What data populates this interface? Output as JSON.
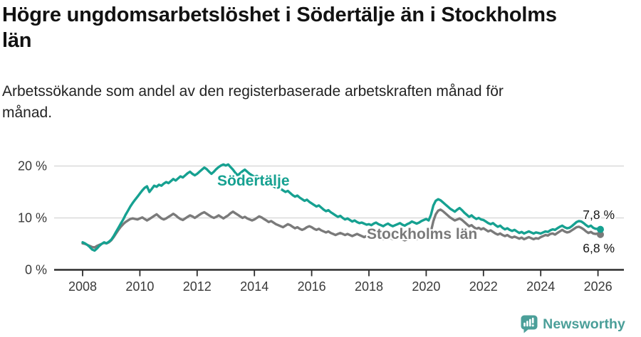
{
  "header": {
    "title_lines": [
      "Högre ungdomsarbetslöshet i Södertälje än i Stockholms",
      "län"
    ],
    "subtitle_lines": [
      "Arbetssökande som andel av den registerbaserade arbetskraften månad för",
      "månad."
    ]
  },
  "footer": {
    "brand_name": "Newsworthy",
    "brand_color": "#4b9f99"
  },
  "chart_data": {
    "type": "line",
    "title": "Högre ungdomsarbetslöshet i Södertälje än i Stockholms län",
    "subtitle": "Arbetssökande som andel av den registerbaserade arbetskraften månad för månad.",
    "unit": "%",
    "x_start_year": 2008,
    "x_step": "monthly",
    "x_end": "2026-02",
    "ylim": [
      0,
      21
    ],
    "grid": "horizontal",
    "y_ticks": [
      {
        "value": 0,
        "label": "0 %"
      },
      {
        "value": 10,
        "label": "10 %"
      },
      {
        "value": 20,
        "label": "20 %"
      }
    ],
    "x_ticks": [
      {
        "value": 2008,
        "label": "2008"
      },
      {
        "value": 2010,
        "label": "2010"
      },
      {
        "value": 2012,
        "label": "2012"
      },
      {
        "value": 2014,
        "label": "2014"
      },
      {
        "value": 2016,
        "label": "2016"
      },
      {
        "value": 2018,
        "label": "2018"
      },
      {
        "value": 2020,
        "label": "2020"
      },
      {
        "value": 2022,
        "label": "2022"
      },
      {
        "value": 2024,
        "label": "2024"
      },
      {
        "value": 2026,
        "label": "2026"
      }
    ],
    "end_labels": [
      {
        "series": "Södertälje",
        "value": 7.8,
        "label": "7,8 %"
      },
      {
        "series": "Stockholms län",
        "value": 6.8,
        "label": "6,8 %"
      }
    ],
    "series": [
      {
        "name": "Södertälje",
        "color": "#16a191",
        "values": [
          5.3,
          5.1,
          4.8,
          4.4,
          3.9,
          3.7,
          4.1,
          4.6,
          5.0,
          5.3,
          5.1,
          5.4,
          5.8,
          6.5,
          7.3,
          8.1,
          8.9,
          9.7,
          10.6,
          11.4,
          12.2,
          12.9,
          13.5,
          14.1,
          14.7,
          15.3,
          15.8,
          16.1,
          15.0,
          15.6,
          16.2,
          16.0,
          16.4,
          16.2,
          16.6,
          16.9,
          16.7,
          17.1,
          17.5,
          17.2,
          17.6,
          18.0,
          17.8,
          18.2,
          18.6,
          18.9,
          18.5,
          18.2,
          18.5,
          18.9,
          19.3,
          19.7,
          19.4,
          18.9,
          18.5,
          18.9,
          19.4,
          19.8,
          20.1,
          20.3,
          20.1,
          20.3,
          19.8,
          19.3,
          18.7,
          18.2,
          18.6,
          19.0,
          19.3,
          18.9,
          18.5,
          18.2,
          17.9,
          18.1,
          17.7,
          17.3,
          17.0,
          16.6,
          16.9,
          16.5,
          16.1,
          15.8,
          16.0,
          15.6,
          15.3,
          15.0,
          15.2,
          14.8,
          14.4,
          14.1,
          14.3,
          13.9,
          13.6,
          13.3,
          13.5,
          13.1,
          12.8,
          12.5,
          12.2,
          12.4,
          12.0,
          11.6,
          11.3,
          11.5,
          11.1,
          10.8,
          10.5,
          10.2,
          10.4,
          10.0,
          9.7,
          9.9,
          9.6,
          9.3,
          9.5,
          9.2,
          9.0,
          9.1,
          8.9,
          8.7,
          8.8,
          8.6,
          8.9,
          9.1,
          8.8,
          8.6,
          8.4,
          8.7,
          8.9,
          8.6,
          8.4,
          8.6,
          8.8,
          9.0,
          8.7,
          8.5,
          8.8,
          9.0,
          9.3,
          9.1,
          8.9,
          9.1,
          9.4,
          9.6,
          9.8,
          9.5,
          10.6,
          12.4,
          13.3,
          13.6,
          13.4,
          13.0,
          12.6,
          12.2,
          11.8,
          11.5,
          11.2,
          11.6,
          11.9,
          11.5,
          11.0,
          10.6,
          10.2,
          10.5,
          10.1,
          9.8,
          10.0,
          9.7,
          9.6,
          9.3,
          9.0,
          8.8,
          9.0,
          8.6,
          8.3,
          8.5,
          8.1,
          7.8,
          8.0,
          7.7,
          7.5,
          7.7,
          7.4,
          7.1,
          7.3,
          7.0,
          7.2,
          7.4,
          7.2,
          7.0,
          7.2,
          7.1,
          7.0,
          7.2,
          7.4,
          7.3,
          7.6,
          7.8,
          7.7,
          8.0,
          8.3,
          8.5,
          8.2,
          8.0,
          8.1,
          8.4,
          8.8,
          9.2,
          9.4,
          9.3,
          9.0,
          8.6,
          8.3,
          8.5,
          8.1,
          7.9,
          7.9,
          7.8
        ]
      },
      {
        "name": "Stockholms län",
        "color": "#7a7a7a",
        "values": [
          5.1,
          5.0,
          4.8,
          4.6,
          4.4,
          4.3,
          4.6,
          4.8,
          5.0,
          5.2,
          5.1,
          5.3,
          5.7,
          6.3,
          7.0,
          7.7,
          8.3,
          8.8,
          9.2,
          9.5,
          9.8,
          9.9,
          9.8,
          9.7,
          9.9,
          10.1,
          9.8,
          9.5,
          9.8,
          10.1,
          10.4,
          10.7,
          10.3,
          9.9,
          9.7,
          9.9,
          10.2,
          10.5,
          10.8,
          10.5,
          10.1,
          9.8,
          9.6,
          9.9,
          10.2,
          10.5,
          10.3,
          10.0,
          10.3,
          10.6,
          10.9,
          11.1,
          10.8,
          10.5,
          10.2,
          10.0,
          10.2,
          10.5,
          10.2,
          9.9,
          10.2,
          10.5,
          10.9,
          11.2,
          10.9,
          10.6,
          10.3,
          10.0,
          10.2,
          9.9,
          9.7,
          9.5,
          9.7,
          10.0,
          10.3,
          10.1,
          9.8,
          9.5,
          9.2,
          9.4,
          9.1,
          8.8,
          8.6,
          8.4,
          8.2,
          8.5,
          8.8,
          8.6,
          8.3,
          8.0,
          8.2,
          7.9,
          7.7,
          7.9,
          8.2,
          8.4,
          8.2,
          7.9,
          7.7,
          7.9,
          7.6,
          7.4,
          7.2,
          7.4,
          7.1,
          6.9,
          6.7,
          6.9,
          7.1,
          6.9,
          6.7,
          6.9,
          6.7,
          6.5,
          6.7,
          6.9,
          6.7,
          6.5,
          6.3,
          6.5,
          6.7,
          6.5,
          6.3,
          6.5,
          6.3,
          6.1,
          5.9,
          6.1,
          6.3,
          6.1,
          5.9,
          6.1,
          6.3,
          6.1,
          5.9,
          5.7,
          5.9,
          6.1,
          6.3,
          6.1,
          5.9,
          6.1,
          6.3,
          6.5,
          6.7,
          6.5,
          7.4,
          9.4,
          10.7,
          11.4,
          11.6,
          11.3,
          10.9,
          10.5,
          10.1,
          9.8,
          9.5,
          9.7,
          9.9,
          9.6,
          9.2,
          8.8,
          8.4,
          8.6,
          8.2,
          7.9,
          8.1,
          7.8,
          8.0,
          7.7,
          7.4,
          7.6,
          7.3,
          7.0,
          6.8,
          7.0,
          6.7,
          6.5,
          6.7,
          6.4,
          6.2,
          6.4,
          6.2,
          6.0,
          6.2,
          5.9,
          6.1,
          6.3,
          6.1,
          5.9,
          6.1,
          6.0,
          6.3,
          6.5,
          6.7,
          6.6,
          6.9,
          7.0,
          6.8,
          7.1,
          7.4,
          7.7,
          7.4,
          7.2,
          7.3,
          7.6,
          7.9,
          8.2,
          8.3,
          8.1,
          7.8,
          7.4,
          7.1,
          7.3,
          7.0,
          6.9,
          7.0,
          6.8
        ]
      }
    ],
    "style": {
      "grid_color": "#d9d9d9",
      "axis_color": "#2d2d2d",
      "tick_label_color": "#3a3a3a",
      "value_label_color": "#161616"
    }
  }
}
